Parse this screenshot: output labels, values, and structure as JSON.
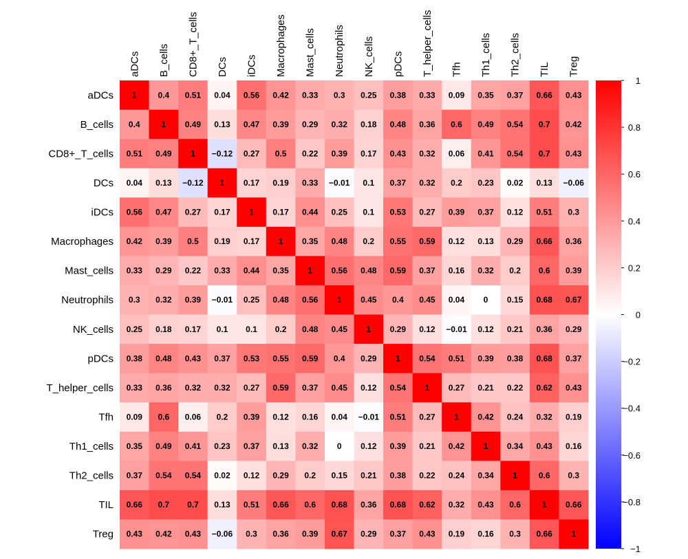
{
  "chart_data": {
    "type": "heatmap",
    "title": "",
    "xlabel": "",
    "ylabel": "",
    "labels": [
      "aDCs",
      "B_cells",
      "CD8+_T_cells",
      "DCs",
      "iDCs",
      "Macrophages",
      "Mast_cells",
      "Neutrophils",
      "NK_cells",
      "pDCs",
      "T_helper_cells",
      "Tfh",
      "Th1_cells",
      "Th2_cells",
      "TIL",
      "Treg"
    ],
    "values": [
      [
        1,
        0.4,
        0.51,
        0.04,
        0.56,
        0.42,
        0.33,
        0.3,
        0.25,
        0.38,
        0.33,
        0.09,
        0.35,
        0.37,
        0.66,
        0.43
      ],
      [
        0.4,
        1,
        0.49,
        0.13,
        0.47,
        0.39,
        0.29,
        0.32,
        0.18,
        0.48,
        0.36,
        0.6,
        0.49,
        0.54,
        0.7,
        0.42
      ],
      [
        0.51,
        0.49,
        1,
        -0.12,
        0.27,
        0.5,
        0.22,
        0.39,
        0.17,
        0.43,
        0.32,
        0.06,
        0.41,
        0.54,
        0.7,
        0.43
      ],
      [
        0.04,
        0.13,
        -0.12,
        1,
        0.17,
        0.19,
        0.33,
        -0.01,
        0.1,
        0.37,
        0.32,
        0.2,
        0.23,
        0.02,
        0.13,
        -0.06
      ],
      [
        0.56,
        0.47,
        0.27,
        0.17,
        1,
        0.17,
        0.44,
        0.25,
        0.1,
        0.53,
        0.27,
        0.39,
        0.37,
        0.12,
        0.51,
        0.3
      ],
      [
        0.42,
        0.39,
        0.5,
        0.19,
        0.17,
        1,
        0.35,
        0.48,
        0.2,
        0.55,
        0.59,
        0.12,
        0.13,
        0.29,
        0.66,
        0.36
      ],
      [
        0.33,
        0.29,
        0.22,
        0.33,
        0.44,
        0.35,
        1,
        0.56,
        0.48,
        0.59,
        0.37,
        0.16,
        0.32,
        0.2,
        0.6,
        0.39
      ],
      [
        0.3,
        0.32,
        0.39,
        -0.01,
        0.25,
        0.48,
        0.56,
        1,
        0.45,
        0.4,
        0.45,
        0.04,
        0,
        0.15,
        0.68,
        0.67
      ],
      [
        0.25,
        0.18,
        0.17,
        0.1,
        0.1,
        0.2,
        0.48,
        0.45,
        1,
        0.29,
        0.12,
        -0.01,
        0.12,
        0.21,
        0.36,
        0.29
      ],
      [
        0.38,
        0.48,
        0.43,
        0.37,
        0.53,
        0.55,
        0.59,
        0.4,
        0.29,
        1,
        0.54,
        0.51,
        0.39,
        0.38,
        0.68,
        0.37
      ],
      [
        0.33,
        0.36,
        0.32,
        0.32,
        0.27,
        0.59,
        0.37,
        0.45,
        0.12,
        0.54,
        1,
        0.27,
        0.21,
        0.22,
        0.62,
        0.43
      ],
      [
        0.09,
        0.6,
        0.06,
        0.2,
        0.39,
        0.12,
        0.16,
        0.04,
        -0.01,
        0.51,
        0.27,
        1,
        0.42,
        0.24,
        0.32,
        0.19
      ],
      [
        0.35,
        0.49,
        0.41,
        0.23,
        0.37,
        0.13,
        0.32,
        0,
        0.12,
        0.39,
        0.21,
        0.42,
        1,
        0.34,
        0.43,
        0.16
      ],
      [
        0.37,
        0.54,
        0.54,
        0.02,
        0.12,
        0.29,
        0.2,
        0.15,
        0.21,
        0.38,
        0.22,
        0.24,
        0.34,
        1,
        0.6,
        0.3
      ],
      [
        0.66,
        0.7,
        0.7,
        0.13,
        0.51,
        0.66,
        0.6,
        0.68,
        0.36,
        0.68,
        0.62,
        0.32,
        0.43,
        0.6,
        1,
        0.66
      ],
      [
        0.43,
        0.42,
        0.43,
        -0.06,
        0.3,
        0.36,
        0.39,
        0.67,
        0.29,
        0.37,
        0.43,
        0.19,
        0.16,
        0.3,
        0.66,
        1
      ]
    ],
    "value_range": [
      -1,
      1
    ],
    "colorbar": {
      "ticks": [
        1,
        0.8,
        0.6,
        0.4,
        0.2,
        0,
        -0.2,
        -0.4,
        -0.6,
        -0.8,
        -1
      ],
      "tick_labels": [
        "1",
        "0.8",
        "0.6",
        "0.4",
        "0.2",
        "0",
        "−0.2",
        "−0.4",
        "−0.6",
        "−0.8",
        "−1"
      ],
      "placement": "right"
    },
    "colors": {
      "low": "#0000ff",
      "mid": "#ffffff",
      "high": "#ff0000"
    },
    "grid": false
  }
}
